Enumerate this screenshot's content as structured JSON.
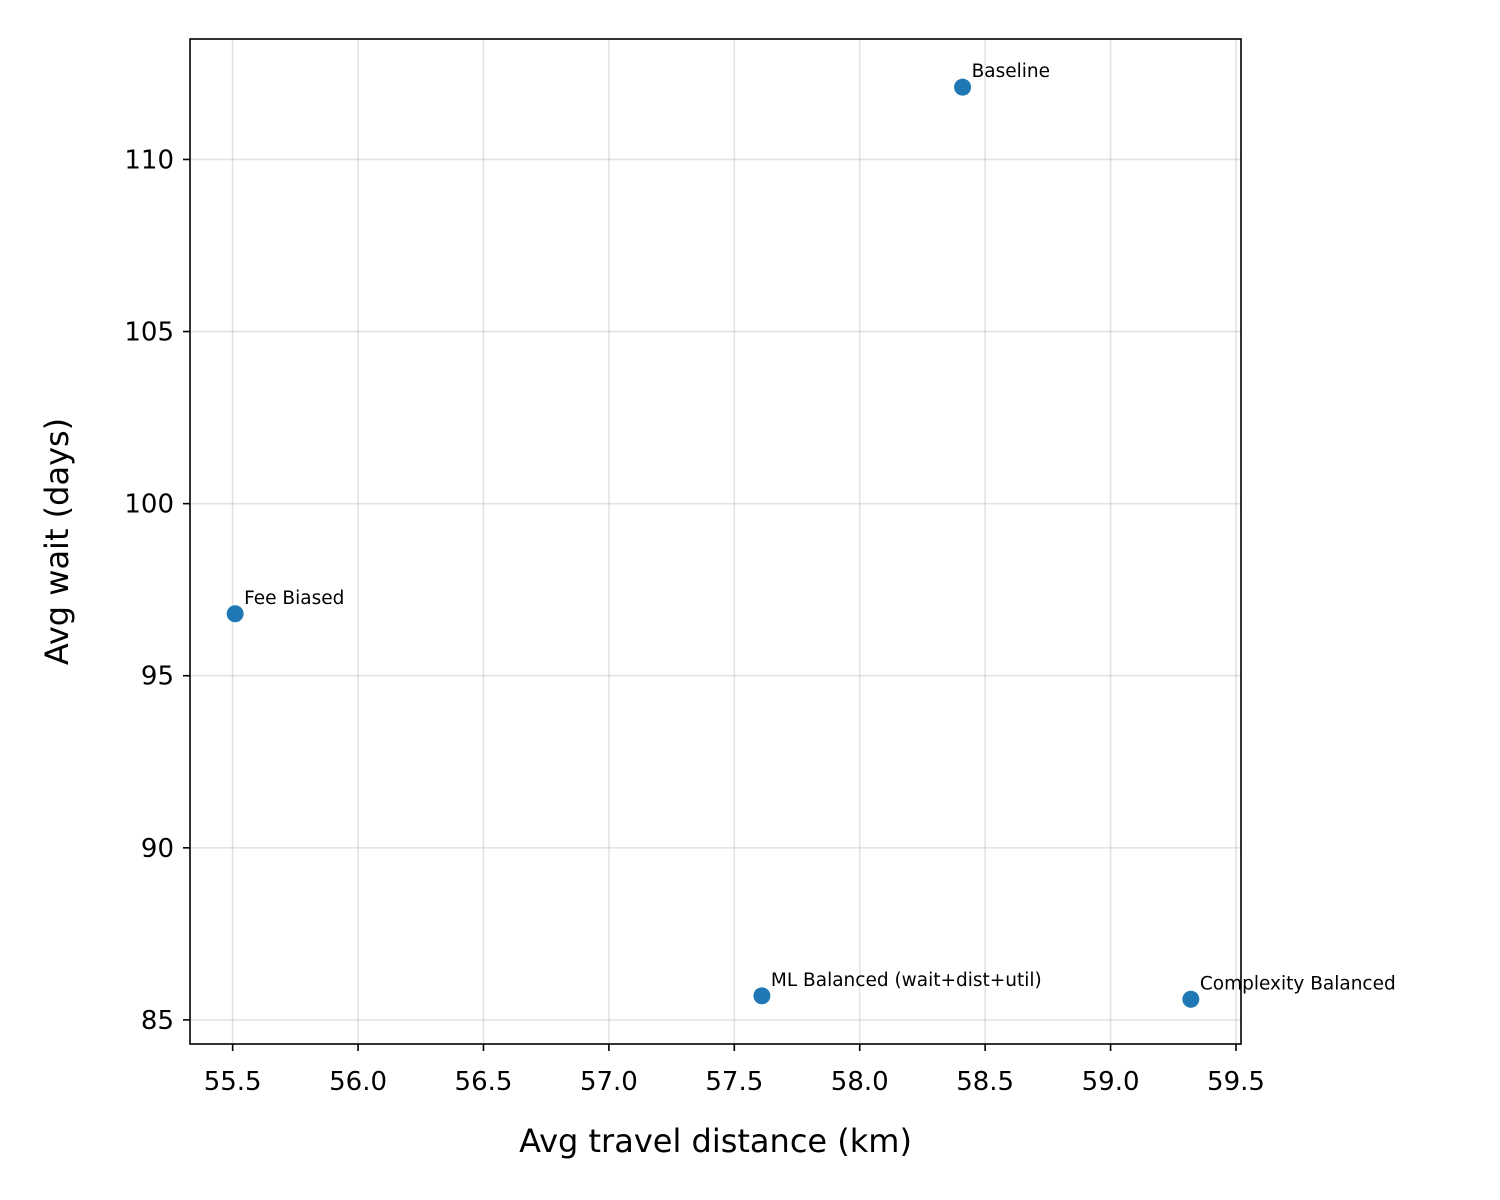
{
  "chart_data": {
    "type": "scatter",
    "title": "",
    "xlabel": "Avg travel distance (km)",
    "ylabel": "Avg wait (days)",
    "xlim": [
      55.33,
      59.52
    ],
    "ylim": [
      84.3,
      113.5
    ],
    "xticks": [
      55.5,
      56.0,
      56.5,
      57.0,
      57.5,
      58.0,
      58.5,
      59.0,
      59.5
    ],
    "yticks": [
      85,
      90,
      95,
      100,
      105,
      110
    ],
    "xtick_labels": [
      "55.5",
      "56.0",
      "56.5",
      "57.0",
      "57.5",
      "58.0",
      "58.5",
      "59.0",
      "59.5"
    ],
    "ytick_labels": [
      "85",
      "90",
      "95",
      "100",
      "105",
      "110"
    ],
    "grid": true,
    "marker_color": "#1f77b4",
    "points": [
      {
        "label": "Baseline",
        "x": 58.41,
        "y": 112.1
      },
      {
        "label": "Fee Biased",
        "x": 55.51,
        "y": 96.8
      },
      {
        "label": "ML Balanced (wait+dist+util)",
        "x": 57.61,
        "y": 85.7
      },
      {
        "label": "Complexity Balanced",
        "x": 59.32,
        "y": 85.6
      }
    ]
  }
}
